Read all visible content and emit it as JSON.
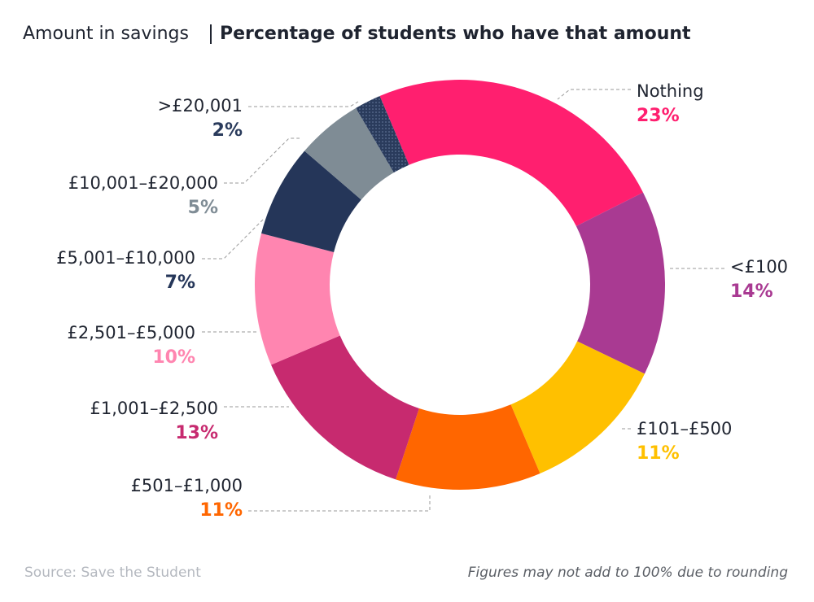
{
  "chart_data": {
    "type": "pie",
    "title": "Amount in savings",
    "subtitle": "Percentage of students who have that amount",
    "categories": [
      "Nothing",
      "<£100",
      "£101–£500",
      "£501–£1,000",
      "£1,001–£2,500",
      "£2,501–£5,000",
      "£5,001–£10,000",
      "£10,001–£20,000",
      ">£20,001"
    ],
    "values": [
      23,
      14,
      11,
      11,
      13,
      10,
      7,
      5,
      2
    ],
    "value_labels": [
      "23%",
      "14%",
      "11%",
      "11%",
      "13%",
      "10%",
      "7%",
      "5%",
      "2%"
    ],
    "colors": [
      "#ff1f6f",
      "#a93a92",
      "#ffc000",
      "#ff6600",
      "#c72a6f",
      "#ff85b0",
      "#253659",
      "#7f8c95",
      "#2a3b5c"
    ],
    "source": "Source: Save the Student",
    "note": "Figures may not add to 100% due to rounding"
  }
}
